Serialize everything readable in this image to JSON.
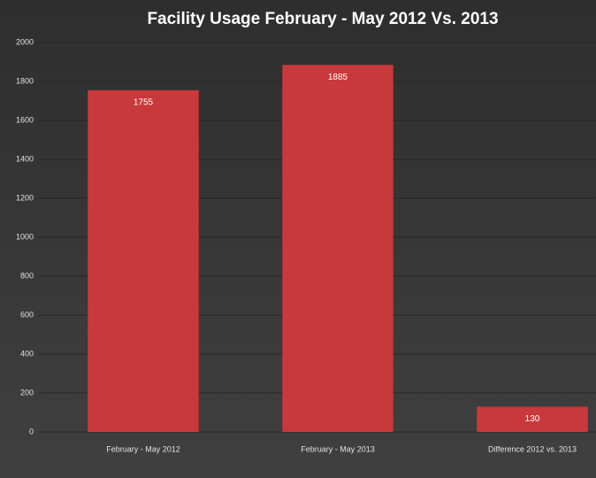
{
  "chart_data": {
    "type": "bar",
    "title": "Facility Usage February - May 2012 Vs. 2013",
    "categories": [
      "February - May 2012",
      "February - May 2013",
      "Difference 2012 vs. 2013"
    ],
    "values": [
      1755,
      1885,
      130
    ],
    "color": "#c9393b",
    "ylim": [
      0,
      2000
    ],
    "yticks": [
      0,
      200,
      400,
      600,
      800,
      1000,
      1200,
      1400,
      1600,
      1800,
      2000
    ],
    "grid": true
  }
}
